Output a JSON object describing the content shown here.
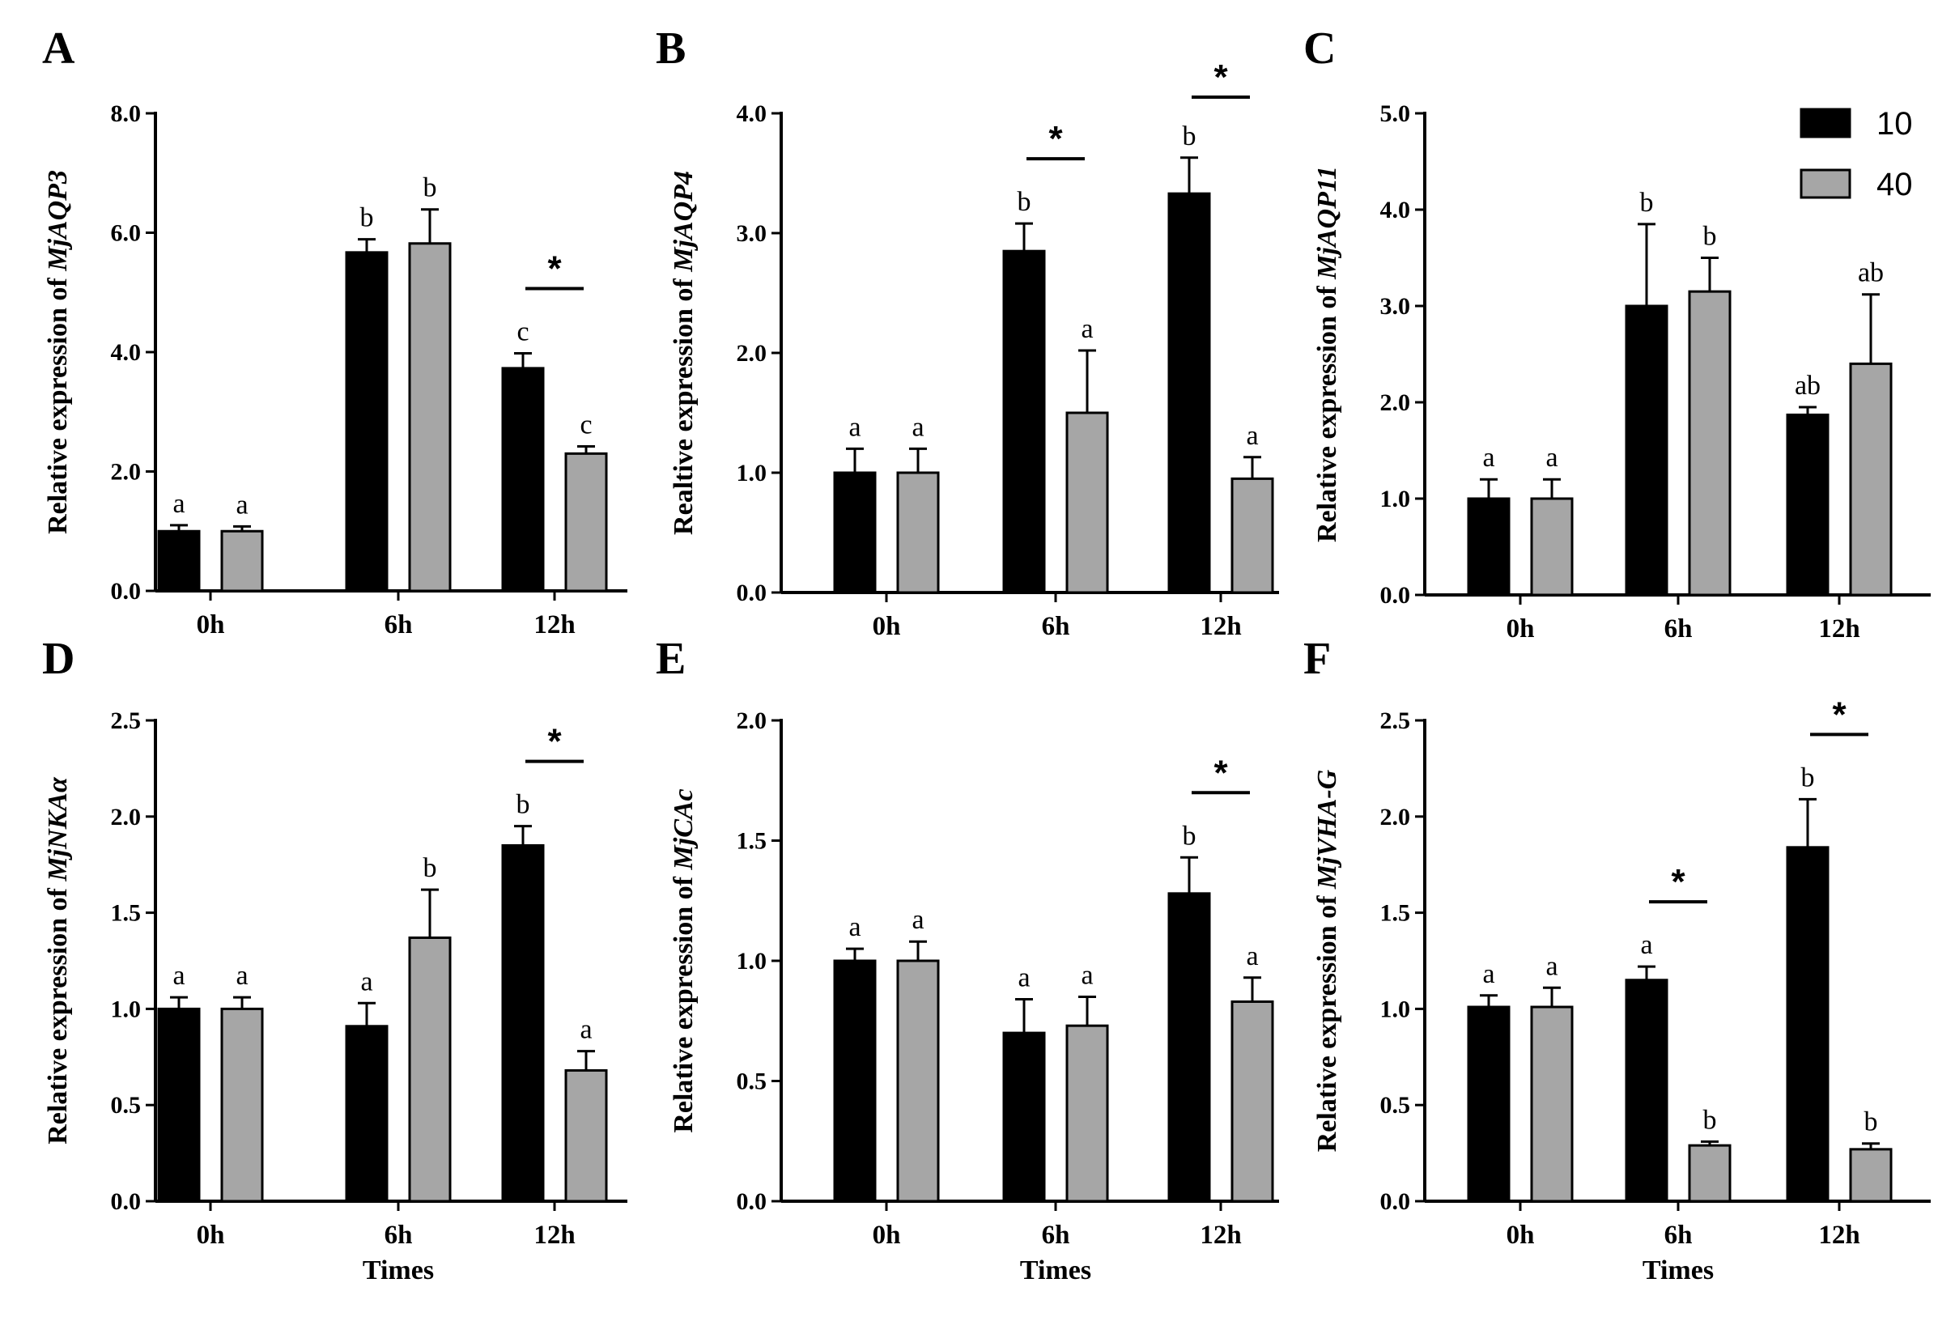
{
  "colors": {
    "series_10": "#000000",
    "series_40": "#a6a6a6",
    "axis": "#000000"
  },
  "legend": {
    "items": [
      {
        "label": "10",
        "color": "#000000"
      },
      {
        "label": "40",
        "color": "#a6a6a6"
      }
    ]
  },
  "chart_data": [
    {
      "panel": "A",
      "type": "bar",
      "ylabel_prefix": "Relative expression of ",
      "gene": "MjAQP3",
      "xlabel": "",
      "categories": [
        "0h",
        "6h",
        "12h"
      ],
      "ylim": [
        0,
        8
      ],
      "yticks": [
        "0.0",
        "2.0",
        "4.0",
        "6.0",
        "8.0"
      ],
      "series": [
        {
          "name": "10",
          "values": [
            1.0,
            5.67,
            3.73
          ],
          "errors": [
            0.1,
            0.22,
            0.25
          ],
          "letters": [
            "a",
            "b",
            "c"
          ]
        },
        {
          "name": "40",
          "values": [
            1.0,
            5.82,
            2.3
          ],
          "errors": [
            0.08,
            0.57,
            0.12
          ],
          "letters": [
            "a",
            "b",
            "c"
          ]
        }
      ],
      "stars": [
        {
          "category": 2,
          "label": "*"
        }
      ]
    },
    {
      "panel": "B",
      "type": "bar",
      "ylabel_prefix": "Realtive expression of ",
      "gene": "MjAQP4",
      "xlabel": "",
      "categories": [
        "0h",
        "6h",
        "12h"
      ],
      "ylim": [
        0,
        4
      ],
      "yticks": [
        "0.0",
        "1.0",
        "2.0",
        "3.0",
        "4.0"
      ],
      "series": [
        {
          "name": "10",
          "values": [
            1.0,
            2.85,
            3.33
          ],
          "errors": [
            0.2,
            0.23,
            0.3
          ],
          "letters": [
            "a",
            "b",
            "b"
          ]
        },
        {
          "name": "40",
          "values": [
            1.0,
            1.5,
            0.95
          ],
          "errors": [
            0.2,
            0.52,
            0.18
          ],
          "letters": [
            "a",
            "a",
            "a"
          ]
        }
      ],
      "stars": [
        {
          "category": 1,
          "label": "*"
        },
        {
          "category": 2,
          "label": "*"
        }
      ]
    },
    {
      "panel": "C",
      "type": "bar",
      "ylabel_prefix": "Relative expression of ",
      "gene": "MjAQP11",
      "xlabel": "",
      "categories": [
        "0h",
        "6h",
        "12h"
      ],
      "ylim": [
        0,
        5
      ],
      "yticks": [
        "0.0",
        "1.0",
        "2.0",
        "3.0",
        "4.0",
        "5.0"
      ],
      "series": [
        {
          "name": "10",
          "values": [
            1.0,
            3.0,
            1.87
          ],
          "errors": [
            0.2,
            0.85,
            0.08
          ],
          "letters": [
            "a",
            "b",
            "ab"
          ]
        },
        {
          "name": "40",
          "values": [
            1.0,
            3.15,
            2.4
          ],
          "errors": [
            0.2,
            0.35,
            0.72
          ],
          "letters": [
            "a",
            "b",
            "ab"
          ]
        }
      ],
      "stars": []
    },
    {
      "panel": "D",
      "type": "bar",
      "ylabel_prefix": "Relative expression of ",
      "gene": "MjNKAα",
      "xlabel": "Times",
      "categories": [
        "0h",
        "6h",
        "12h"
      ],
      "ylim": [
        0,
        2.5
      ],
      "yticks": [
        "0.0",
        "0.5",
        "1.0",
        "1.5",
        "2.0",
        "2.5"
      ],
      "series": [
        {
          "name": "10",
          "values": [
            1.0,
            0.91,
            1.85
          ],
          "errors": [
            0.06,
            0.12,
            0.1
          ],
          "letters": [
            "a",
            "a",
            "b"
          ]
        },
        {
          "name": "40",
          "values": [
            1.0,
            1.37,
            0.68
          ],
          "errors": [
            0.06,
            0.25,
            0.1
          ],
          "letters": [
            "a",
            "b",
            "a"
          ]
        }
      ],
      "stars": [
        {
          "category": 2,
          "label": "*"
        }
      ]
    },
    {
      "panel": "E",
      "type": "bar",
      "ylabel_prefix": "Relative expression of ",
      "gene": "MjCAc",
      "xlabel": "Times",
      "categories": [
        "0h",
        "6h",
        "12h"
      ],
      "ylim": [
        0,
        2.0
      ],
      "yticks": [
        "0.0",
        "0.5",
        "1.0",
        "1.5",
        "2.0"
      ],
      "series": [
        {
          "name": "10",
          "values": [
            1.0,
            0.7,
            1.28
          ],
          "errors": [
            0.05,
            0.14,
            0.15
          ],
          "letters": [
            "a",
            "a",
            "b"
          ]
        },
        {
          "name": "40",
          "values": [
            1.0,
            0.73,
            0.83
          ],
          "errors": [
            0.08,
            0.12,
            0.1
          ],
          "letters": [
            "a",
            "a",
            "a"
          ]
        }
      ],
      "stars": [
        {
          "category": 2,
          "label": "*"
        }
      ]
    },
    {
      "panel": "F",
      "type": "bar",
      "ylabel_prefix": "Relative expression of ",
      "gene": "MjVHA-G",
      "xlabel": "Times",
      "categories": [
        "0h",
        "6h",
        "12h"
      ],
      "ylim": [
        0,
        2.5
      ],
      "yticks": [
        "0.0",
        "0.5",
        "1.0",
        "1.5",
        "2.0",
        "2.5"
      ],
      "series": [
        {
          "name": "10",
          "values": [
            1.01,
            1.15,
            1.84
          ],
          "errors": [
            0.06,
            0.07,
            0.25
          ],
          "letters": [
            "a",
            "a",
            "b"
          ]
        },
        {
          "name": "40",
          "values": [
            1.01,
            0.29,
            0.27
          ],
          "errors": [
            0.1,
            0.02,
            0.03
          ],
          "letters": [
            "a",
            "b",
            "b"
          ]
        }
      ],
      "stars": [
        {
          "category": 1,
          "label": "*"
        },
        {
          "category": 2,
          "label": "*"
        }
      ]
    }
  ]
}
